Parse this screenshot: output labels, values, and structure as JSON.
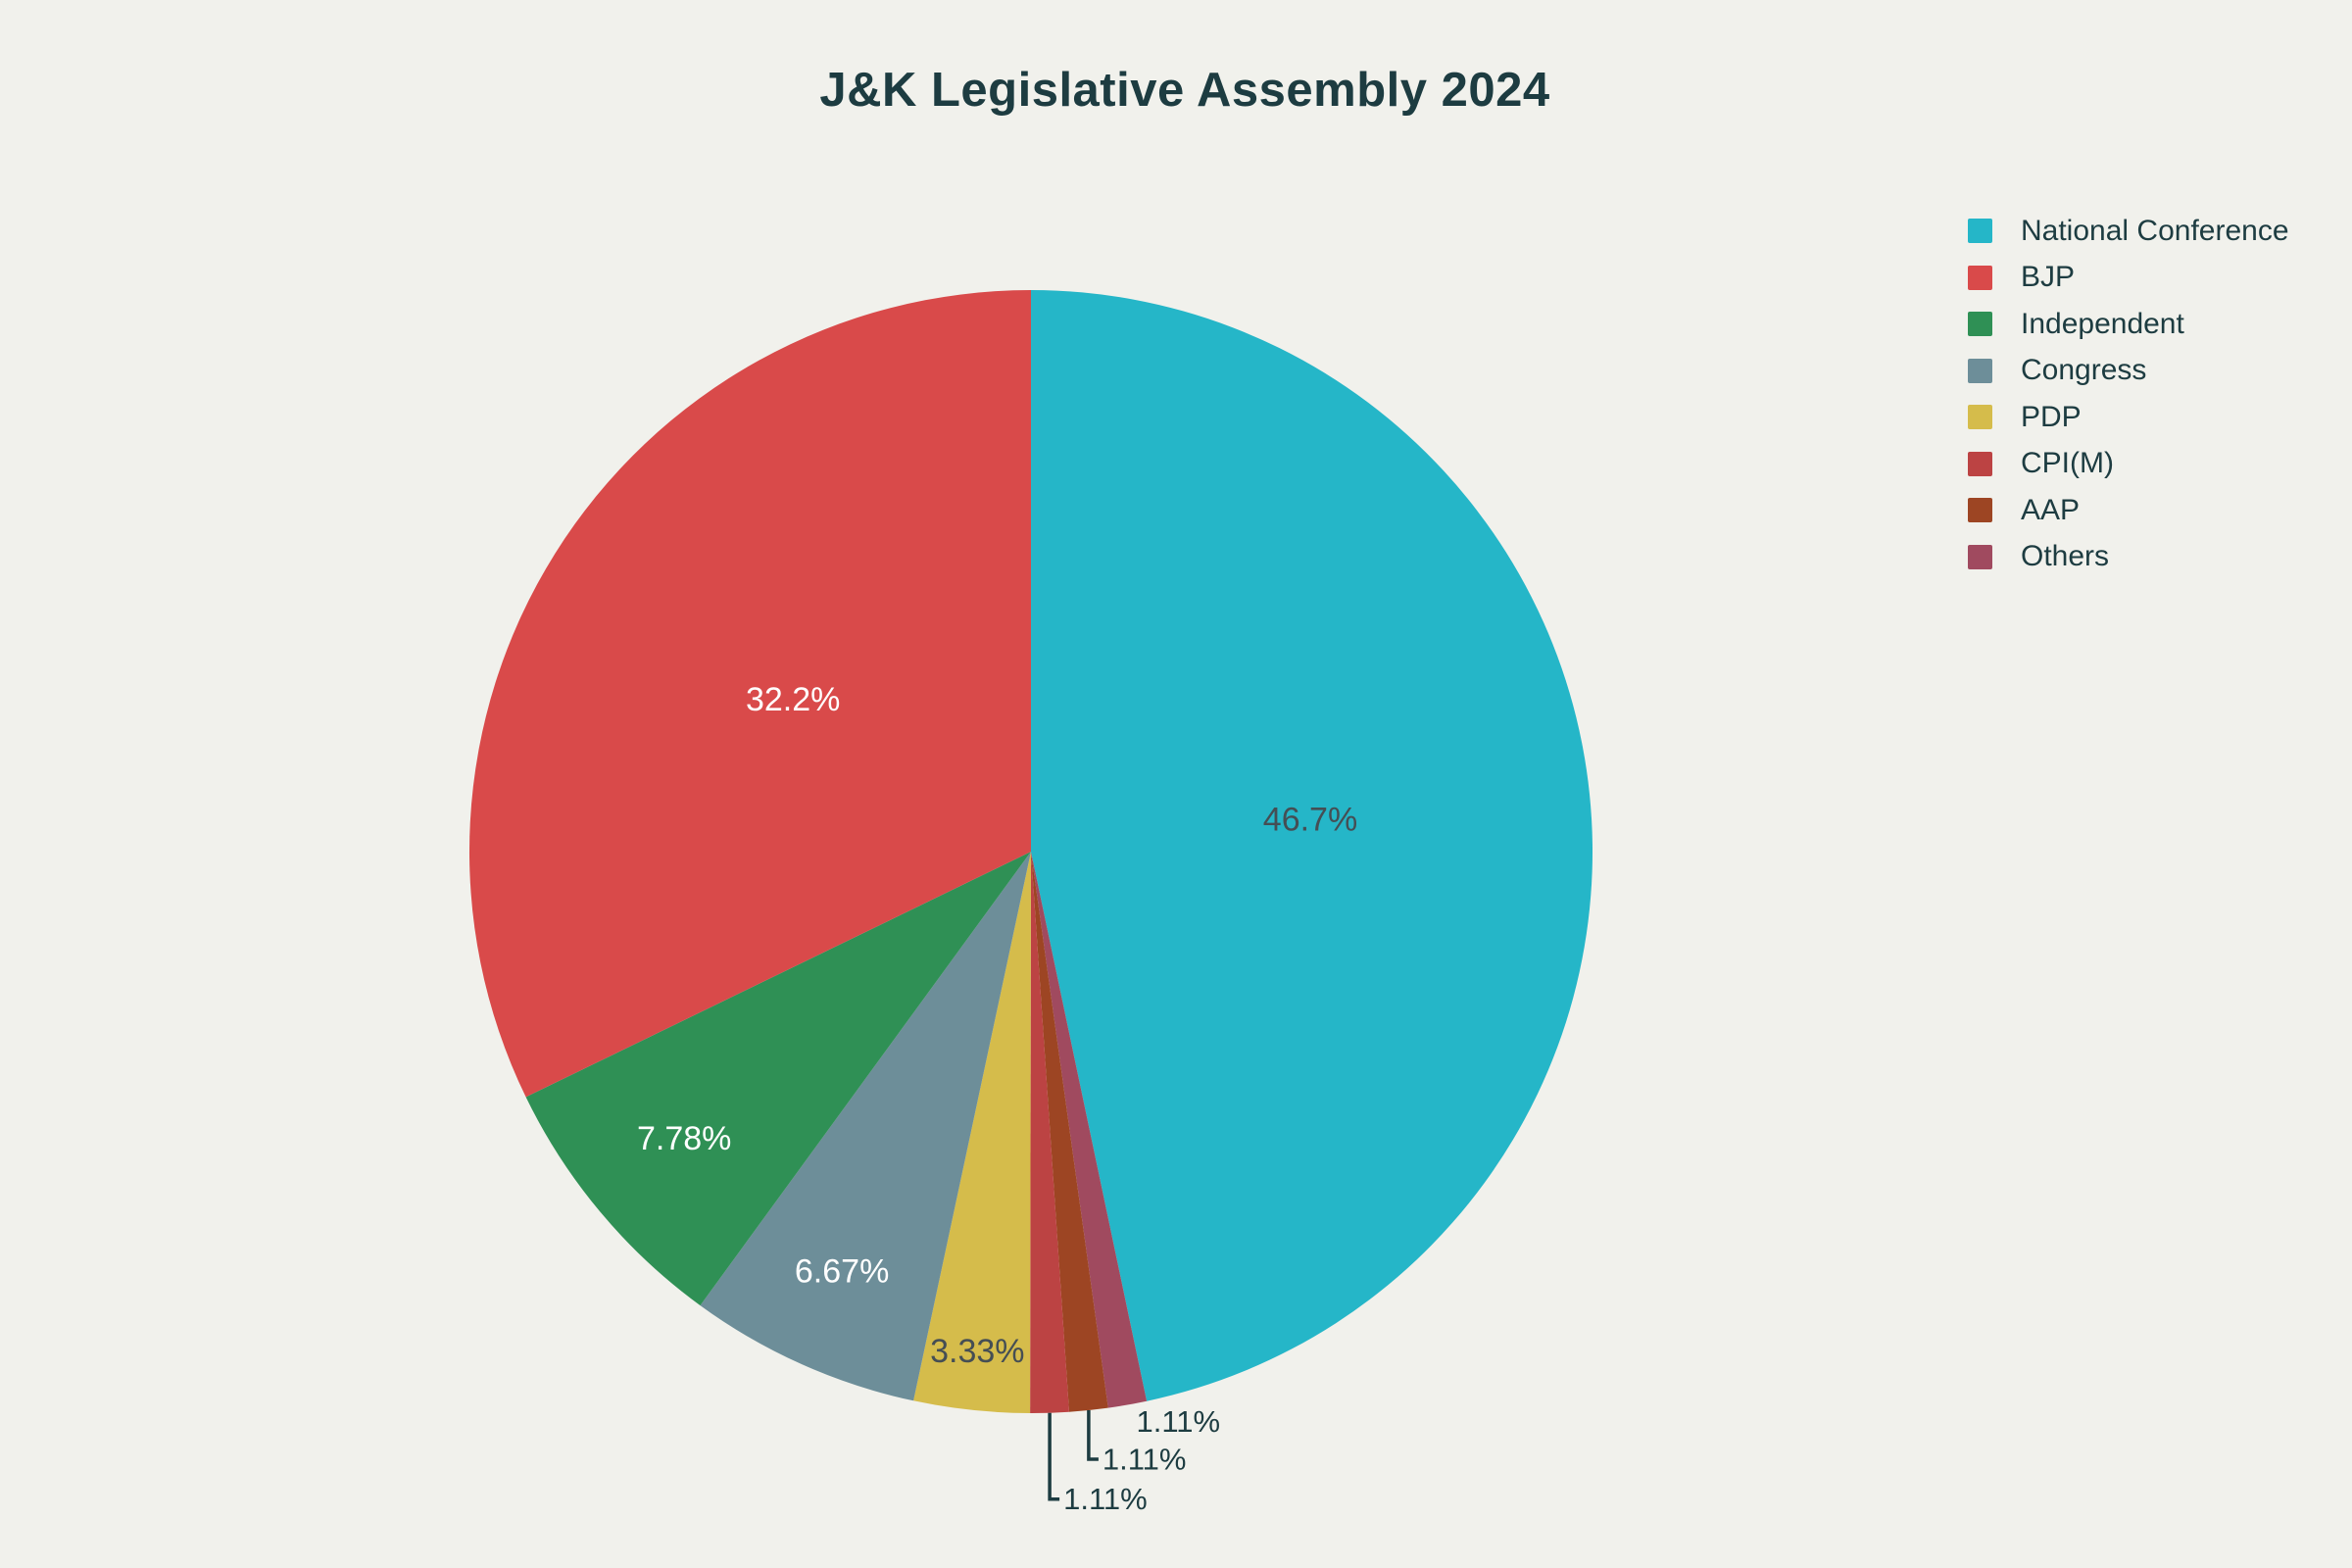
{
  "chart_data": {
    "type": "pie",
    "title": "J&K Legislative Assembly 2024",
    "unit": "%",
    "legend_position": "right",
    "background_color": "#f1f1ec",
    "title_color": "#1d3c41",
    "outside_label_color": "#1d3c41",
    "series": [
      {
        "label": "National Conference",
        "percent": 46.7,
        "percent_label": "46.7%",
        "color": "#25b6c8",
        "label_placement": "inside",
        "label_color": "#454e54"
      },
      {
        "label": "BJP",
        "percent": 32.2,
        "percent_label": "32.2%",
        "color": "#d94a4a",
        "label_placement": "inside",
        "label_color": "#ffffff"
      },
      {
        "label": "Independent",
        "percent": 7.78,
        "percent_label": "7.78%",
        "color": "#2f9055",
        "label_placement": "inside",
        "label_color": "#ffffff"
      },
      {
        "label": "Congress",
        "percent": 6.67,
        "percent_label": "6.67%",
        "color": "#6d8e99",
        "label_placement": "inside",
        "label_color": "#ffffff"
      },
      {
        "label": "PDP",
        "percent": 3.33,
        "percent_label": "3.33%",
        "color": "#d5bc4b",
        "label_placement": "inside",
        "label_color": "#454e54"
      },
      {
        "label": "CPI(M)",
        "percent": 1.11,
        "percent_label": "1.11%",
        "color": "#bc4343",
        "label_placement": "outside",
        "label_color": "#1d3c41"
      },
      {
        "label": "AAP",
        "percent": 1.11,
        "percent_label": "1.11%",
        "color": "#9d4523",
        "label_placement": "outside",
        "label_color": "#1d3c41"
      },
      {
        "label": "Others",
        "percent": 1.11,
        "percent_label": "1.11%",
        "color": "#a04a5f",
        "label_placement": "outside",
        "label_color": "#1d3c41"
      }
    ],
    "slice_order_clockwise_from_top": [
      "National Conference",
      "Others",
      "AAP",
      "CPI(M)",
      "PDP",
      "Congress",
      "Independent",
      "BJP"
    ]
  }
}
